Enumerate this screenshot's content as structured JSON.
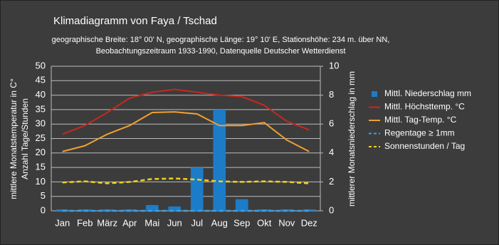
{
  "chart_data": {
    "type": "bar-line",
    "title": "Klimadiagramm von  Faya / Tschad",
    "subtitle": [
      "geographische Breite: 18° 00' N, geographische Länge: 19° 10' E, Stationshöhe: 234 m. über NN,",
      "Beobachtungszeitraum 1933-1990, Datenquelle Deutscher Wetterdienst"
    ],
    "ylabel": [
      "mittlere Monatstemperatur in C°",
      "Anzahl Tage/Stunden"
    ],
    "y2label": "mittlerer Monatsniederschlag in mm",
    "categories": [
      "Jan",
      "Feb",
      "März",
      "Apr",
      "Mai",
      "Jun",
      "Jul",
      "Aug",
      "Sep",
      "Okt",
      "Nov",
      "Dez"
    ],
    "ylim": [
      0,
      50
    ],
    "yticks": [
      0,
      5,
      10,
      15,
      20,
      25,
      30,
      35,
      40,
      45,
      50
    ],
    "y2lim": [
      0,
      10
    ],
    "y2ticks": [
      0,
      2,
      4,
      6,
      8,
      10
    ],
    "grid": true,
    "legend": "right",
    "series": [
      {
        "name": "Mittl. Niederschlag mm",
        "type": "bar",
        "axis": "y2",
        "color": "#1c7cc8",
        "values": [
          0.1,
          0.1,
          0.1,
          0.1,
          0.4,
          0.3,
          3,
          7,
          0.8,
          0.1,
          0.1,
          0.1
        ]
      },
      {
        "name": "Mittl. Höchsttemp. °C",
        "type": "line",
        "color": "#c8281e",
        "values": [
          26.5,
          29.5,
          34,
          39,
          41,
          42,
          41,
          40,
          39.5,
          36.5,
          31,
          28
        ]
      },
      {
        "name": "Mittl. Tag-Temp. °C",
        "type": "line",
        "color": "#f0a030",
        "values": [
          20.5,
          22.5,
          26.5,
          29.5,
          34,
          34.2,
          33.5,
          29.5,
          29.5,
          30.5,
          24.5,
          20.5
        ]
      },
      {
        "name": "Regentage ≥ 1mm",
        "type": "line",
        "style": "dashed",
        "color": "#3ea0e0",
        "values": [
          0,
          0,
          0,
          0,
          0,
          0,
          0,
          0,
          0,
          0,
          0,
          0
        ]
      },
      {
        "name": "Sonnenstunden / Tag",
        "type": "line",
        "style": "dashed",
        "color": "#f0d020",
        "values": [
          9.8,
          10.2,
          9.5,
          10,
          11,
          11.2,
          10.8,
          10.2,
          10,
          10.2,
          10,
          9.5
        ]
      }
    ]
  }
}
